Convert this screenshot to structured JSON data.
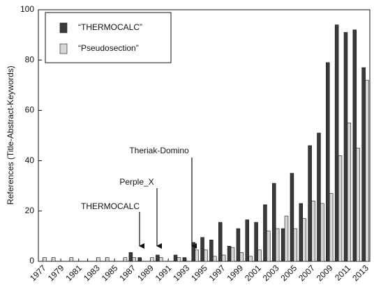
{
  "chart_data": {
    "type": "bar",
    "ylabel": "References (Title-Abstract-Keywords)",
    "categories": [
      "1977",
      null,
      "1979",
      null,
      "1981",
      null,
      "1983",
      null,
      "1985",
      null,
      "1987",
      null,
      "1989",
      null,
      "1991",
      null,
      "1993",
      null,
      "1995",
      null,
      "1997",
      null,
      "1999",
      null,
      "2001",
      null,
      "2003",
      null,
      "2005",
      null,
      "2007",
      null,
      "2009",
      null,
      "2011",
      null,
      "2013"
    ],
    "series": [
      {
        "name": "“THERMOCALC”",
        "color": "#3a3a3a",
        "values": [
          0,
          0,
          0,
          0,
          0,
          0,
          0,
          0,
          0,
          0,
          3.5,
          1.5,
          0,
          2.5,
          0,
          2.5,
          1.5,
          7.5,
          9.5,
          8.5,
          15.5,
          6,
          13,
          16.5,
          15.5,
          22.5,
          31,
          13,
          35,
          23,
          46,
          51,
          79,
          94,
          91,
          92,
          77
        ]
      },
      {
        "name": "“Pseudosection”",
        "color": "#d6d6d6",
        "values": [
          1.5,
          1.5,
          0,
          1.5,
          0,
          0,
          1.5,
          1.5,
          0,
          1.5,
          1.5,
          0,
          1.5,
          1.5,
          0,
          1.5,
          0,
          4.5,
          4.5,
          2,
          2.5,
          5.5,
          3.5,
          2,
          4.5,
          12,
          13,
          18,
          13,
          17,
          24,
          23,
          27,
          42,
          55,
          45,
          72
        ]
      }
    ],
    "ylim": [
      0,
      100
    ],
    "yticks": [
      0,
      20,
      40,
      60,
      80,
      100
    ],
    "annotations": [
      "THERMOCALC",
      "Perple_X",
      "Theriak-Domino"
    ]
  }
}
